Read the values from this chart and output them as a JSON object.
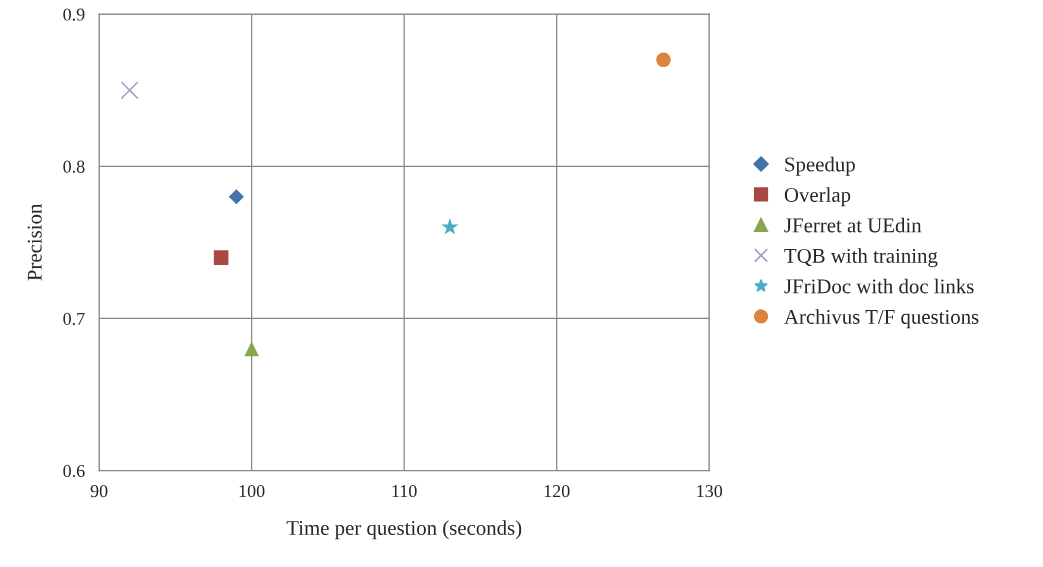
{
  "chart_data": {
    "type": "scatter",
    "xlabel": "Time per question (seconds)",
    "ylabel": "Precision",
    "xlim": [
      90,
      130
    ],
    "xticks": [
      90,
      100,
      110,
      120,
      130
    ],
    "ylim": [
      0.6,
      0.9
    ],
    "yticks": [
      0.6,
      0.7,
      0.8,
      0.9
    ],
    "grid": true,
    "legend": "right",
    "series": [
      {
        "name": "Speedup",
        "color": "#4572a7",
        "marker": "diamond",
        "x": [
          99
        ],
        "values": [
          0.78
        ]
      },
      {
        "name": "Overlap",
        "color": "#aa4643",
        "marker": "square",
        "x": [
          98
        ],
        "values": [
          0.74
        ]
      },
      {
        "name": "JFerret at UEdin",
        "color": "#89a54e",
        "marker": "triangle",
        "x": [
          100
        ],
        "values": [
          0.68
        ]
      },
      {
        "name": "TQB with training",
        "color": "#a99bbd",
        "marker": "cross",
        "x": [
          92
        ],
        "values": [
          0.85
        ]
      },
      {
        "name": "JFriDoc with doc links",
        "color": "#4bacc6",
        "marker": "star",
        "x": [
          113
        ],
        "values": [
          0.76
        ]
      },
      {
        "name": "Archivus T/F questions",
        "color": "#db843d",
        "marker": "circle",
        "x": [
          127
        ],
        "values": [
          0.87
        ]
      }
    ]
  }
}
